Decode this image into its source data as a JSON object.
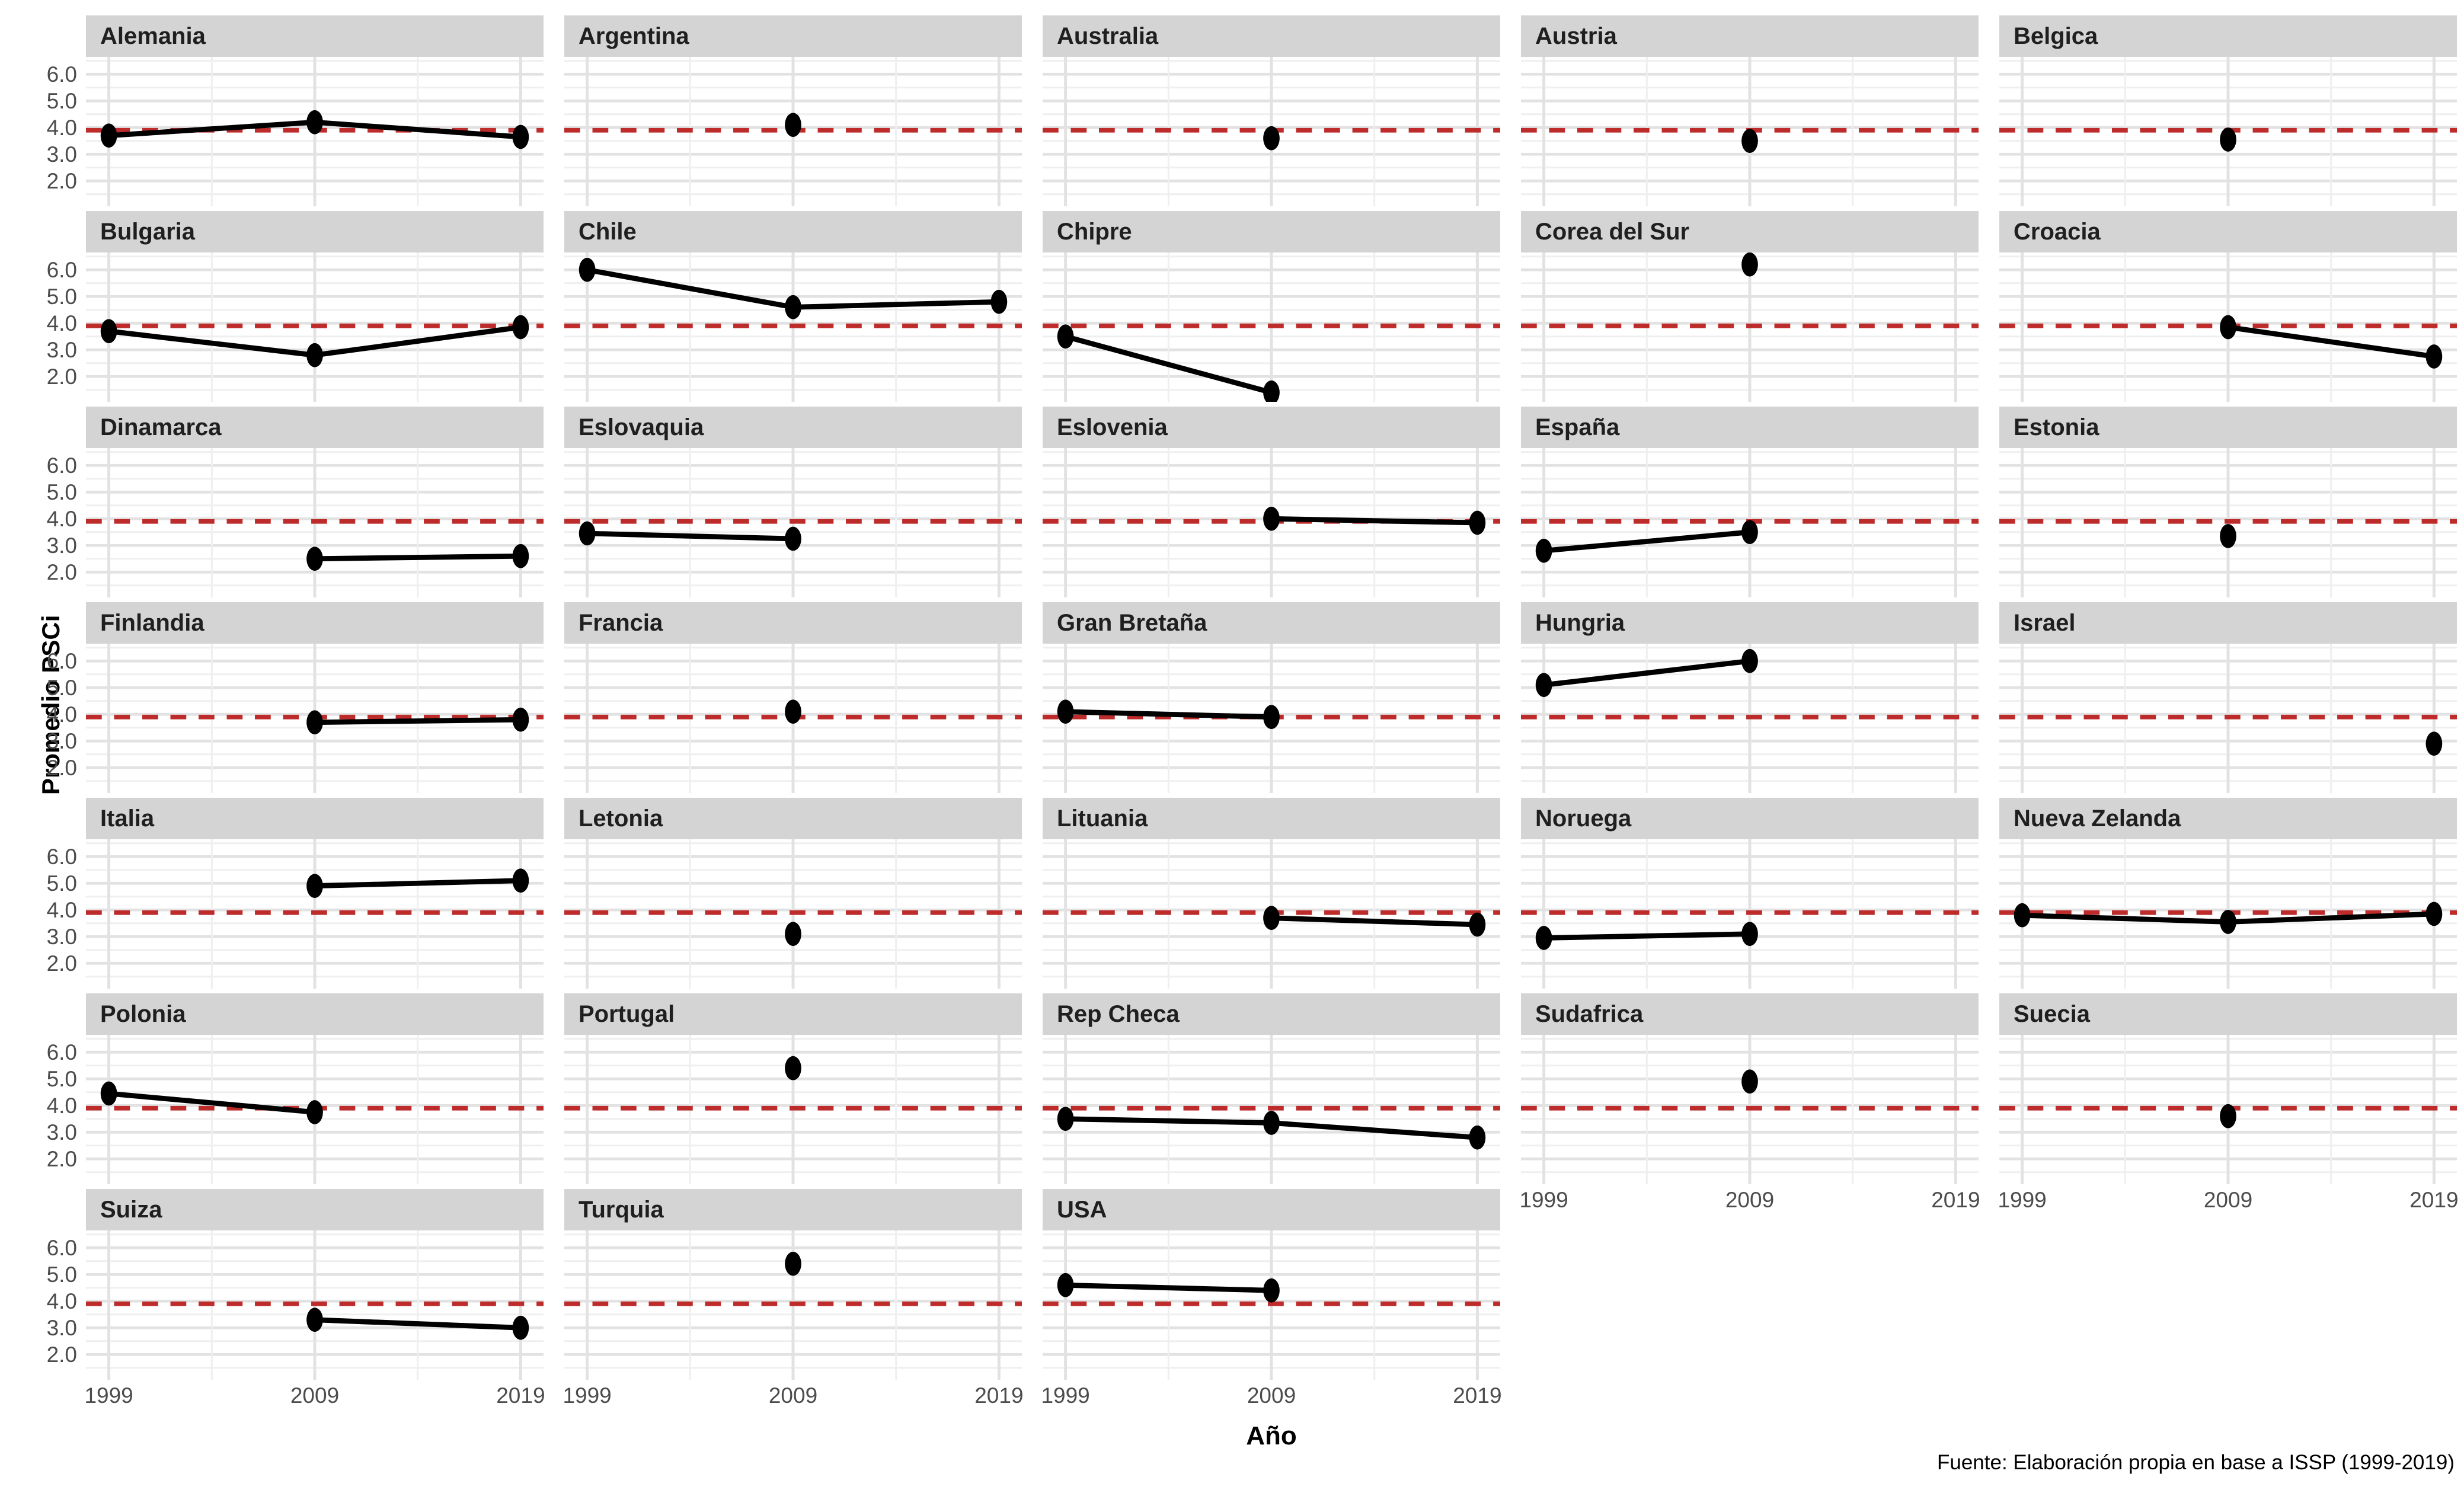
{
  "figure": {
    "ylabel": "Promedio PSCi",
    "xlabel": "Año",
    "caption": "Fuente: Elaboración propia en base a ISSP (1999-2019)"
  },
  "chart_data": {
    "type": "line",
    "small_multiples": true,
    "columns": 5,
    "x": [
      1999,
      2009,
      2019
    ],
    "xtick_labels": [
      "1999",
      "2009",
      "2019"
    ],
    "ytick_labels": [
      "6.0",
      "5.0",
      "4.0",
      "3.0",
      "2.0"
    ],
    "yticks_major": [
      6.0,
      5.0,
      4.0,
      3.0,
      2.0
    ],
    "yticks_minor": [
      6.5,
      5.5,
      4.5,
      3.5,
      2.5,
      1.5
    ],
    "ylim": [
      1.05,
      6.65
    ],
    "x_fractions": {
      "1999": 0.05,
      "2004": 0.275,
      "2009": 0.5,
      "2014": 0.725,
      "2019": 0.95
    },
    "reference_line_y": 3.9,
    "grid": "on",
    "legend": "none",
    "colors": {
      "reference_line": "#bd2b2b",
      "series": "#000000",
      "strip_bg": "#d4d4d4",
      "grid_major": "#e2e2e2",
      "grid_minor": "#efefef",
      "tick_text": "#4c4c4c"
    },
    "facets": [
      {
        "name": "Alemania",
        "points": [
          [
            1999,
            3.7
          ],
          [
            2009,
            4.2
          ],
          [
            2019,
            3.65
          ]
        ]
      },
      {
        "name": "Argentina",
        "points": [
          [
            2009,
            4.1
          ]
        ]
      },
      {
        "name": "Australia",
        "points": [
          [
            2009,
            3.6
          ]
        ]
      },
      {
        "name": "Austria",
        "points": [
          [
            2009,
            3.5
          ]
        ]
      },
      {
        "name": "Belgica",
        "points": [
          [
            2009,
            3.55
          ]
        ]
      },
      {
        "name": "Bulgaria",
        "points": [
          [
            1999,
            3.7
          ],
          [
            2009,
            2.8
          ],
          [
            2019,
            3.85
          ]
        ]
      },
      {
        "name": "Chile",
        "points": [
          [
            1999,
            6.0
          ],
          [
            2009,
            4.6
          ],
          [
            2019,
            4.8
          ]
        ]
      },
      {
        "name": "Chipre",
        "points": [
          [
            1999,
            3.5
          ],
          [
            2009,
            1.4
          ]
        ]
      },
      {
        "name": "Corea del Sur",
        "points": [
          [
            2009,
            6.2
          ]
        ]
      },
      {
        "name": "Croacia",
        "points": [
          [
            2009,
            3.85
          ],
          [
            2019,
            2.75
          ]
        ]
      },
      {
        "name": "Dinamarca",
        "points": [
          [
            2009,
            2.5
          ],
          [
            2019,
            2.6
          ]
        ]
      },
      {
        "name": "Eslovaquia",
        "points": [
          [
            1999,
            3.45
          ],
          [
            2009,
            3.25
          ]
        ]
      },
      {
        "name": "Eslovenia",
        "points": [
          [
            2009,
            4.0
          ],
          [
            2019,
            3.85
          ]
        ]
      },
      {
        "name": "España",
        "points": [
          [
            1999,
            2.8
          ],
          [
            2009,
            3.5
          ]
        ]
      },
      {
        "name": "Estonia",
        "points": [
          [
            2009,
            3.35
          ]
        ]
      },
      {
        "name": "Finlandia",
        "points": [
          [
            2009,
            3.7
          ],
          [
            2019,
            3.8
          ]
        ]
      },
      {
        "name": "Francia",
        "points": [
          [
            2009,
            4.1
          ]
        ]
      },
      {
        "name": "Gran Bretaña",
        "points": [
          [
            1999,
            4.1
          ],
          [
            2009,
            3.9
          ]
        ]
      },
      {
        "name": "Hungria",
        "points": [
          [
            1999,
            5.1
          ],
          [
            2009,
            6.0
          ]
        ]
      },
      {
        "name": "Israel",
        "points": [
          [
            2019,
            2.9
          ]
        ]
      },
      {
        "name": "Italia",
        "points": [
          [
            2009,
            4.9
          ],
          [
            2019,
            5.1
          ]
        ]
      },
      {
        "name": "Letonia",
        "points": [
          [
            2009,
            3.1
          ]
        ]
      },
      {
        "name": "Lituania",
        "points": [
          [
            2009,
            3.7
          ],
          [
            2019,
            3.45
          ]
        ]
      },
      {
        "name": "Noruega",
        "points": [
          [
            1999,
            2.95
          ],
          [
            2009,
            3.1
          ]
        ]
      },
      {
        "name": "Nueva Zelanda",
        "points": [
          [
            1999,
            3.8
          ],
          [
            2009,
            3.55
          ],
          [
            2019,
            3.85
          ]
        ]
      },
      {
        "name": "Polonia",
        "points": [
          [
            1999,
            4.45
          ],
          [
            2009,
            3.75
          ]
        ]
      },
      {
        "name": "Portugal",
        "points": [
          [
            2009,
            5.4
          ]
        ]
      },
      {
        "name": "Rep Checa",
        "points": [
          [
            1999,
            3.5
          ],
          [
            2009,
            3.35
          ],
          [
            2019,
            2.8
          ]
        ]
      },
      {
        "name": "Sudafrica",
        "points": [
          [
            2009,
            4.9
          ]
        ]
      },
      {
        "name": "Suecia",
        "points": [
          [
            2009,
            3.6
          ]
        ]
      },
      {
        "name": "Suiza",
        "points": [
          [
            2009,
            3.3
          ],
          [
            2019,
            3.0
          ]
        ]
      },
      {
        "name": "Turquia",
        "points": [
          [
            2009,
            5.4
          ]
        ]
      },
      {
        "name": "USA",
        "points": [
          [
            1999,
            4.6
          ],
          [
            2009,
            4.4
          ]
        ]
      }
    ]
  }
}
